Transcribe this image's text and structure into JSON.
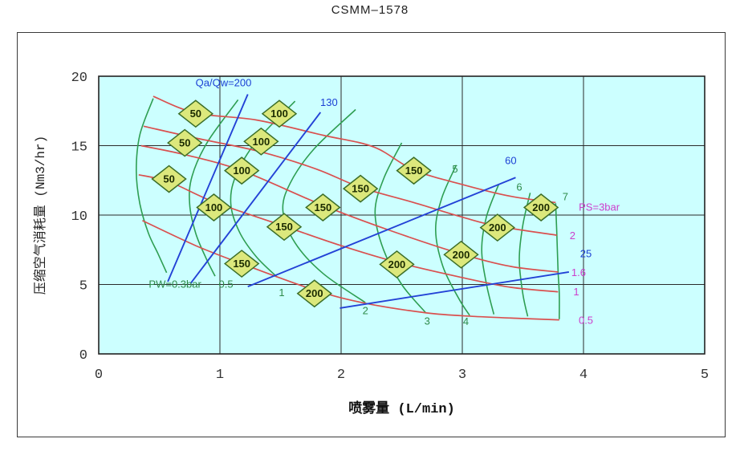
{
  "title": "CSMM–1578",
  "chart_data": {
    "type": "line",
    "title": "CSMM–1578",
    "xlabel": "喷雾量 (L/min)",
    "ylabel": "压缩空气消耗量 (Nm3/hr)",
    "xlim": [
      0,
      5
    ],
    "ylim": [
      0,
      20
    ],
    "xticks": [
      0,
      1,
      2,
      3,
      4,
      5
    ],
    "yticks": [
      0,
      5,
      10,
      15,
      20
    ],
    "grid": true,
    "legend_position": "none",
    "plot_bg": "#ccffff",
    "colors": {
      "ps_curve": "#d9504f",
      "pw_curve": "#2e9e52",
      "ratio_line": "#2342d6",
      "ps_label": "#cc3ecc",
      "pw_label": "#2e8b4a",
      "ratio_label": "#1b3fd4",
      "diamond_fill": "#dce87c",
      "diamond_stroke": "#3c6e28",
      "diamond_text": "#1b2b00",
      "grid": "#2a2a2a",
      "tick_text": "#333333"
    },
    "series_ps_air_pressure": [
      {
        "name": "PS=3bar",
        "points": [
          [
            0.45,
            18.55
          ],
          [
            0.8,
            17.35
          ],
          [
            1.3,
            16.85
          ],
          [
            1.85,
            15.75
          ],
          [
            2.27,
            14.9
          ],
          [
            2.6,
            13.25
          ],
          [
            3.0,
            12.2
          ],
          [
            3.4,
            11.35
          ],
          [
            3.77,
            10.9
          ]
        ]
      },
      {
        "name": "PS=2bar",
        "points": [
          [
            0.37,
            16.4
          ],
          [
            0.8,
            15.55
          ],
          [
            1.34,
            14.55
          ],
          [
            1.8,
            13.3
          ],
          [
            2.16,
            12.0
          ],
          [
            2.6,
            10.9
          ],
          [
            3.0,
            9.85
          ],
          [
            3.29,
            9.2
          ],
          [
            3.78,
            8.55
          ]
        ]
      },
      {
        "name": "PS=1.6bar",
        "points": [
          [
            0.35,
            15.0
          ],
          [
            0.71,
            14.35
          ],
          [
            1.18,
            13.2
          ],
          [
            1.85,
            10.7
          ],
          [
            2.4,
            8.9
          ],
          [
            2.99,
            7.2
          ],
          [
            3.4,
            6.3
          ],
          [
            3.79,
            5.9
          ]
        ]
      },
      {
        "name": "PS=1bar",
        "points": [
          [
            0.33,
            12.9
          ],
          [
            0.58,
            12.4
          ],
          [
            0.95,
            10.95
          ],
          [
            1.53,
            9.2
          ],
          [
            2.0,
            7.8
          ],
          [
            2.46,
            6.6
          ],
          [
            3.0,
            5.5
          ],
          [
            3.4,
            4.8
          ],
          [
            3.79,
            4.47
          ]
        ]
      },
      {
        "name": "PS=0.5bar",
        "points": [
          [
            0.36,
            9.6
          ],
          [
            0.8,
            7.8
          ],
          [
            1.18,
            6.5
          ],
          [
            1.78,
            4.6
          ],
          [
            2.2,
            3.65
          ],
          [
            2.71,
            2.95
          ],
          [
            3.1,
            2.7
          ],
          [
            3.5,
            2.55
          ],
          [
            3.8,
            2.45
          ]
        ]
      }
    ],
    "series_pw_water_pressure": [
      {
        "name": "PW=0.3bar",
        "points": [
          [
            0.45,
            18.4
          ],
          [
            0.34,
            15.8
          ],
          [
            0.31,
            13.2
          ],
          [
            0.34,
            10.8
          ],
          [
            0.41,
            8.7
          ],
          [
            0.49,
            7.2
          ],
          [
            0.56,
            5.85
          ]
        ]
      },
      {
        "name": "PW=0.5bar",
        "points": [
          [
            1.15,
            18.3
          ],
          [
            0.9,
            15.3
          ],
          [
            0.77,
            12.8
          ],
          [
            0.75,
            10.8
          ],
          [
            0.8,
            8.7
          ],
          [
            0.88,
            7.0
          ],
          [
            0.96,
            5.6
          ]
        ]
      },
      {
        "name": "PW=1bar",
        "points": [
          [
            1.62,
            18.2
          ],
          [
            1.3,
            15.3
          ],
          [
            1.13,
            12.8
          ],
          [
            1.09,
            10.8
          ],
          [
            1.16,
            8.8
          ],
          [
            1.3,
            7.0
          ],
          [
            1.47,
            5.55
          ]
        ]
      },
      {
        "name": "PW=2bar",
        "points": [
          [
            2.12,
            17.6
          ],
          [
            1.78,
            14.8
          ],
          [
            1.58,
            12.3
          ],
          [
            1.52,
            10.3
          ],
          [
            1.62,
            8.0
          ],
          [
            1.85,
            5.8
          ],
          [
            2.2,
            3.7
          ]
        ]
      },
      {
        "name": "PW=3bar",
        "points": [
          [
            2.5,
            15.2
          ],
          [
            2.35,
            12.6
          ],
          [
            2.28,
            10.2
          ],
          [
            2.35,
            7.5
          ],
          [
            2.5,
            5.0
          ],
          [
            2.7,
            2.95
          ]
        ]
      },
      {
        "name": "PW=4bar",
        "points": [
          [
            2.95,
            13.6
          ],
          [
            2.83,
            11.2
          ],
          [
            2.78,
            8.9
          ],
          [
            2.84,
            6.3
          ],
          [
            2.97,
            4.0
          ],
          [
            3.06,
            2.78
          ]
        ]
      },
      {
        "name": "PW=5bar",
        "points": [
          [
            3.3,
            12.2
          ],
          [
            3.2,
            9.9
          ],
          [
            3.16,
            7.5
          ],
          [
            3.2,
            5.0
          ],
          [
            3.26,
            2.85
          ]
        ]
      },
      {
        "name": "PW=6bar",
        "points": [
          [
            3.56,
            11.6
          ],
          [
            3.5,
            9.3
          ],
          [
            3.47,
            6.8
          ],
          [
            3.5,
            4.3
          ],
          [
            3.54,
            2.7
          ]
        ]
      },
      {
        "name": "PW=7bar",
        "points": [
          [
            3.77,
            10.85
          ],
          [
            3.78,
            8.6
          ],
          [
            3.79,
            6.0
          ],
          [
            3.8,
            4.4
          ],
          [
            3.8,
            2.5
          ]
        ]
      }
    ],
    "lines_qa_qw_ratio": [
      {
        "name": "Qa/Qw=200",
        "points": [
          [
            0.57,
            5.2
          ],
          [
            1.23,
            18.7
          ]
        ]
      },
      {
        "name": "Qa/Qw=130",
        "points": [
          [
            0.76,
            5.1
          ],
          [
            1.83,
            17.4
          ]
        ]
      },
      {
        "name": "Qa/Qw=60",
        "points": [
          [
            1.23,
            4.85
          ],
          [
            3.44,
            12.7
          ]
        ]
      },
      {
        "name": "Qa/Qw=25",
        "points": [
          [
            1.99,
            3.3
          ],
          [
            3.88,
            5.9
          ]
        ]
      }
    ],
    "markers_nozzle_models": [
      {
        "label": "50",
        "x": 0.8,
        "y": 17.3
      },
      {
        "label": "50",
        "x": 0.71,
        "y": 15.2
      },
      {
        "label": "50",
        "x": 0.58,
        "y": 12.6
      },
      {
        "label": "100",
        "x": 1.49,
        "y": 17.3
      },
      {
        "label": "100",
        "x": 1.34,
        "y": 15.3
      },
      {
        "label": "100",
        "x": 1.18,
        "y": 13.2
      },
      {
        "label": "100",
        "x": 0.95,
        "y": 10.55
      },
      {
        "label": "150",
        "x": 2.6,
        "y": 13.2
      },
      {
        "label": "150",
        "x": 2.16,
        "y": 11.9
      },
      {
        "label": "150",
        "x": 1.85,
        "y": 10.55
      },
      {
        "label": "150",
        "x": 1.53,
        "y": 9.15
      },
      {
        "label": "150",
        "x": 1.18,
        "y": 6.5
      },
      {
        "label": "200",
        "x": 3.65,
        "y": 10.55
      },
      {
        "label": "200",
        "x": 3.29,
        "y": 9.1
      },
      {
        "label": "200",
        "x": 2.99,
        "y": 7.15
      },
      {
        "label": "200",
        "x": 2.46,
        "y": 6.45
      },
      {
        "label": "200",
        "x": 1.78,
        "y": 4.35
      }
    ],
    "annotations": [
      {
        "text": "Qa/Qw=200",
        "color": "ratio_label",
        "x": 1.03,
        "y": 19.5
      },
      {
        "text": "130",
        "color": "ratio_label",
        "x": 1.9,
        "y": 18.1
      },
      {
        "text": "60",
        "color": "ratio_label",
        "x": 3.4,
        "y": 13.9
      },
      {
        "text": "25",
        "color": "ratio_label",
        "x": 4.02,
        "y": 7.2
      },
      {
        "text": "PS=3bar",
        "color": "ps_label",
        "x": 4.13,
        "y": 10.55
      },
      {
        "text": "2",
        "color": "ps_label",
        "x": 3.91,
        "y": 8.5
      },
      {
        "text": "1.6",
        "color": "ps_label",
        "x": 3.96,
        "y": 5.85
      },
      {
        "text": "1",
        "color": "ps_label",
        "x": 3.94,
        "y": 4.45
      },
      {
        "text": "0.5",
        "color": "ps_label",
        "x": 4.02,
        "y": 2.4
      },
      {
        "text": "PW=0.3bar",
        "color": "pw_label",
        "x": 0.63,
        "y": 5.0
      },
      {
        "text": "0.5",
        "color": "pw_label",
        "x": 1.05,
        "y": 5.0
      },
      {
        "text": "1",
        "color": "pw_label",
        "x": 1.51,
        "y": 4.4
      },
      {
        "text": "2",
        "color": "pw_label",
        "x": 2.2,
        "y": 3.1
      },
      {
        "text": "3",
        "color": "pw_label",
        "x": 2.71,
        "y": 2.35
      },
      {
        "text": "4",
        "color": "pw_label",
        "x": 3.03,
        "y": 2.3
      },
      {
        "text": "5",
        "color": "pw_label",
        "x": 2.94,
        "y": 13.3
      },
      {
        "text": "6",
        "color": "pw_label",
        "x": 3.47,
        "y": 12.0
      },
      {
        "text": "7",
        "color": "pw_label",
        "x": 3.85,
        "y": 11.3
      }
    ]
  }
}
